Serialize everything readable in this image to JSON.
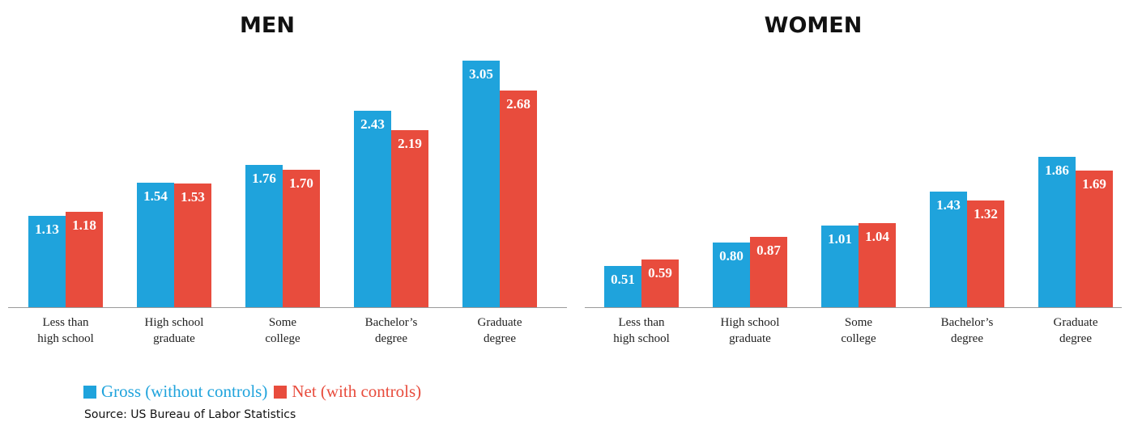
{
  "chart_data": [
    {
      "type": "bar",
      "title": "MEN",
      "categories": [
        "Less than\nhigh school",
        "High school\ngraduate",
        "Some\ncollege",
        "Bachelor’s\ndegree",
        "Graduate\ndegree"
      ],
      "series": [
        {
          "name": "Gross (without controls)",
          "color": "#1fa3dc",
          "values": [
            1.13,
            1.54,
            1.76,
            2.43,
            3.05
          ],
          "labels": [
            "1.13",
            "1.54",
            "1.76",
            "2.43",
            "3.05"
          ]
        },
        {
          "name": "Net (with controls)",
          "color": "#e84c3d",
          "values": [
            1.18,
            1.53,
            1.7,
            2.19,
            2.68
          ],
          "labels": [
            "1.18",
            "1.53",
            "1.70",
            "2.19",
            "2.68"
          ]
        }
      ],
      "ylim": [
        0,
        3.2
      ],
      "grid": false
    },
    {
      "type": "bar",
      "title": "WOMEN",
      "categories": [
        "Less than\nhigh school",
        "High school\ngraduate",
        "Some\ncollege",
        "Bachelor’s\ndegree",
        "Graduate\ndegree"
      ],
      "series": [
        {
          "name": "Gross (without controls)",
          "color": "#1fa3dc",
          "values": [
            0.51,
            0.8,
            1.01,
            1.43,
            1.86
          ],
          "labels": [
            "0.51",
            "0.80",
            "1.01",
            "1.43",
            "1.86"
          ]
        },
        {
          "name": "Net (with controls)",
          "color": "#e84c3d",
          "values": [
            0.59,
            0.87,
            1.04,
            1.32,
            1.69
          ],
          "labels": [
            "0.59",
            "0.87",
            "1.04",
            "1.32",
            "1.69"
          ]
        }
      ],
      "ylim": [
        0,
        3.2
      ],
      "grid": false
    }
  ],
  "legend": {
    "items": [
      {
        "label": "Gross (without controls)",
        "color": "#1fa3dc"
      },
      {
        "label": "Net (with controls)",
        "color": "#e84c3d"
      }
    ],
    "placement": "bottom-left"
  },
  "source": "Source: US Bureau of Labor Statistics"
}
